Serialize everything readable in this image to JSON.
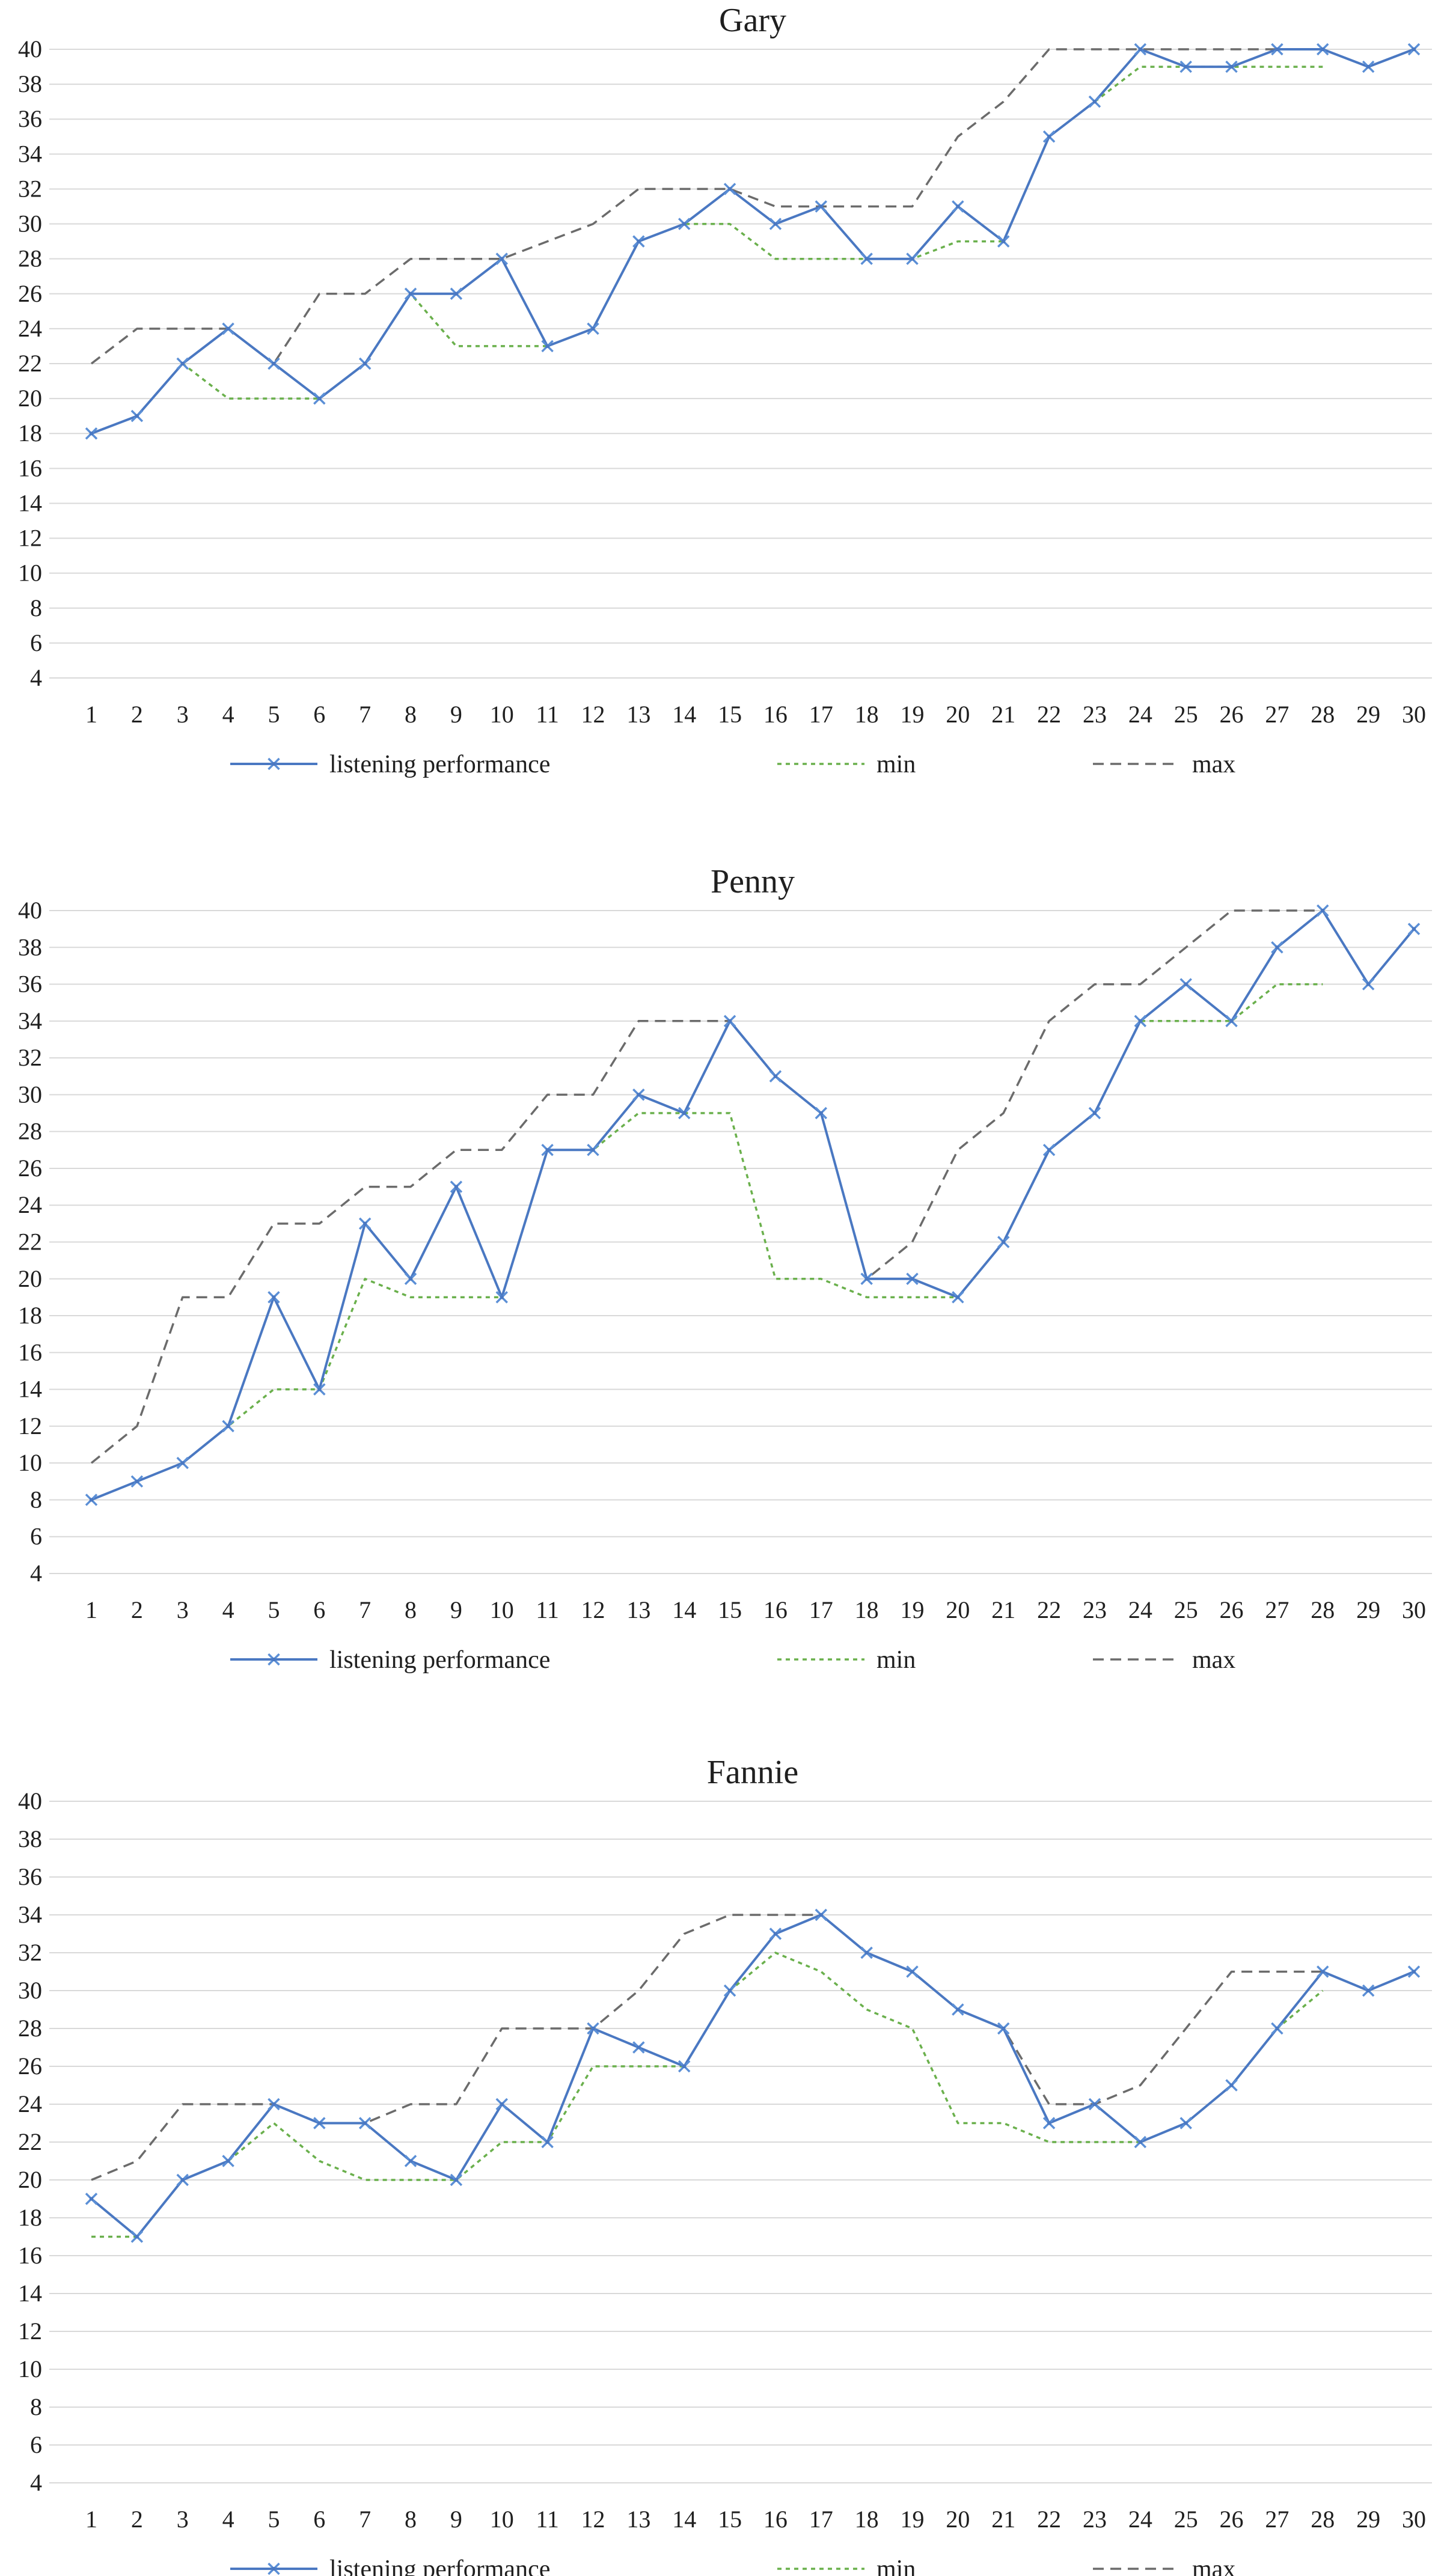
{
  "colors": {
    "performance": "#4a78c2",
    "performance_marker": "#5b8fd6",
    "min": "#6ab04c",
    "max": "#6b6b6b",
    "grid": "#d9d9d9"
  },
  "legend": {
    "performance": "listening performance",
    "min": "min",
    "max": "max"
  },
  "chart_data": [
    {
      "type": "line",
      "title": "Gary",
      "x": [
        1,
        2,
        3,
        4,
        5,
        6,
        7,
        8,
        9,
        10,
        11,
        12,
        13,
        14,
        15,
        16,
        17,
        18,
        19,
        20,
        21,
        22,
        23,
        24,
        25,
        26,
        27,
        28,
        29,
        30
      ],
      "ylim": [
        4,
        40
      ],
      "yticks": [
        4,
        6,
        8,
        10,
        12,
        14,
        16,
        18,
        20,
        22,
        24,
        26,
        28,
        30,
        32,
        34,
        36,
        38,
        40
      ],
      "grid": "horizontal",
      "legend_position": "bottom",
      "series": [
        {
          "name": "listening performance",
          "style": "solid-marker",
          "values": [
            18,
            19,
            22,
            24,
            22,
            20,
            22,
            26,
            26,
            28,
            23,
            24,
            29,
            30,
            32,
            30,
            31,
            28,
            28,
            31,
            29,
            35,
            37,
            40,
            39,
            39,
            40,
            40,
            39,
            40
          ]
        },
        {
          "name": "min",
          "style": "dotted",
          "values": [
            18,
            19,
            22,
            20,
            20,
            20,
            22,
            26,
            23,
            23,
            23,
            24,
            29,
            30,
            30,
            28,
            28,
            28,
            28,
            29,
            29,
            35,
            37,
            39,
            39,
            39,
            39,
            39,
            null,
            null
          ]
        },
        {
          "name": "max",
          "style": "dashed",
          "values": [
            22,
            24,
            24,
            24,
            22,
            26,
            26,
            28,
            28,
            28,
            29,
            30,
            32,
            32,
            32,
            31,
            31,
            31,
            31,
            35,
            37,
            40,
            40,
            40,
            40,
            40,
            40,
            40,
            null,
            null
          ]
        }
      ]
    },
    {
      "type": "line",
      "title": "Penny",
      "x": [
        1,
        2,
        3,
        4,
        5,
        6,
        7,
        8,
        9,
        10,
        11,
        12,
        13,
        14,
        15,
        16,
        17,
        18,
        19,
        20,
        21,
        22,
        23,
        24,
        25,
        26,
        27,
        28,
        29,
        30
      ],
      "ylim": [
        4,
        40
      ],
      "yticks": [
        4,
        6,
        8,
        10,
        12,
        14,
        16,
        18,
        20,
        22,
        24,
        26,
        28,
        30,
        32,
        34,
        36,
        38,
        40
      ],
      "grid": "horizontal",
      "legend_position": "bottom",
      "series": [
        {
          "name": "listening performance",
          "style": "solid-marker",
          "values": [
            8,
            9,
            10,
            12,
            19,
            14,
            23,
            20,
            25,
            19,
            27,
            27,
            30,
            29,
            34,
            31,
            29,
            20,
            20,
            19,
            22,
            27,
            29,
            34,
            36,
            34,
            38,
            40,
            36,
            39
          ]
        },
        {
          "name": "min",
          "style": "dotted",
          "values": [
            8,
            9,
            10,
            12,
            14,
            14,
            20,
            19,
            19,
            19,
            27,
            27,
            29,
            29,
            29,
            20,
            20,
            19,
            19,
            19,
            22,
            27,
            29,
            34,
            34,
            34,
            36,
            36,
            null,
            null
          ]
        },
        {
          "name": "max",
          "style": "dashed",
          "values": [
            10,
            12,
            19,
            19,
            23,
            23,
            25,
            25,
            27,
            27,
            30,
            30,
            34,
            34,
            34,
            31,
            29,
            20,
            22,
            27,
            29,
            34,
            36,
            36,
            38,
            40,
            40,
            40,
            null,
            null
          ]
        }
      ]
    },
    {
      "type": "line",
      "title": "Fannie",
      "x": [
        1,
        2,
        3,
        4,
        5,
        6,
        7,
        8,
        9,
        10,
        11,
        12,
        13,
        14,
        15,
        16,
        17,
        18,
        19,
        20,
        21,
        22,
        23,
        24,
        25,
        26,
        27,
        28,
        29,
        30
      ],
      "ylim": [
        4,
        40
      ],
      "yticks": [
        4,
        6,
        8,
        10,
        12,
        14,
        16,
        18,
        20,
        22,
        24,
        26,
        28,
        30,
        32,
        34,
        36,
        38,
        40
      ],
      "grid": "horizontal",
      "legend_position": "bottom",
      "series": [
        {
          "name": "listening performance",
          "style": "solid-marker",
          "values": [
            19,
            17,
            20,
            21,
            24,
            23,
            23,
            21,
            20,
            24,
            22,
            28,
            27,
            26,
            30,
            33,
            34,
            32,
            31,
            29,
            28,
            23,
            24,
            22,
            23,
            25,
            28,
            31,
            30,
            31
          ]
        },
        {
          "name": "min",
          "style": "dotted",
          "values": [
            17,
            17,
            20,
            21,
            23,
            21,
            20,
            20,
            20,
            22,
            22,
            26,
            26,
            26,
            30,
            32,
            31,
            29,
            28,
            23,
            23,
            22,
            22,
            22,
            23,
            25,
            28,
            30,
            null,
            null
          ]
        },
        {
          "name": "max",
          "style": "dashed",
          "values": [
            20,
            21,
            24,
            24,
            24,
            23,
            23,
            24,
            24,
            28,
            28,
            28,
            30,
            33,
            34,
            34,
            34,
            32,
            31,
            29,
            28,
            24,
            24,
            25,
            28,
            31,
            31,
            31,
            null,
            null
          ]
        }
      ]
    }
  ]
}
